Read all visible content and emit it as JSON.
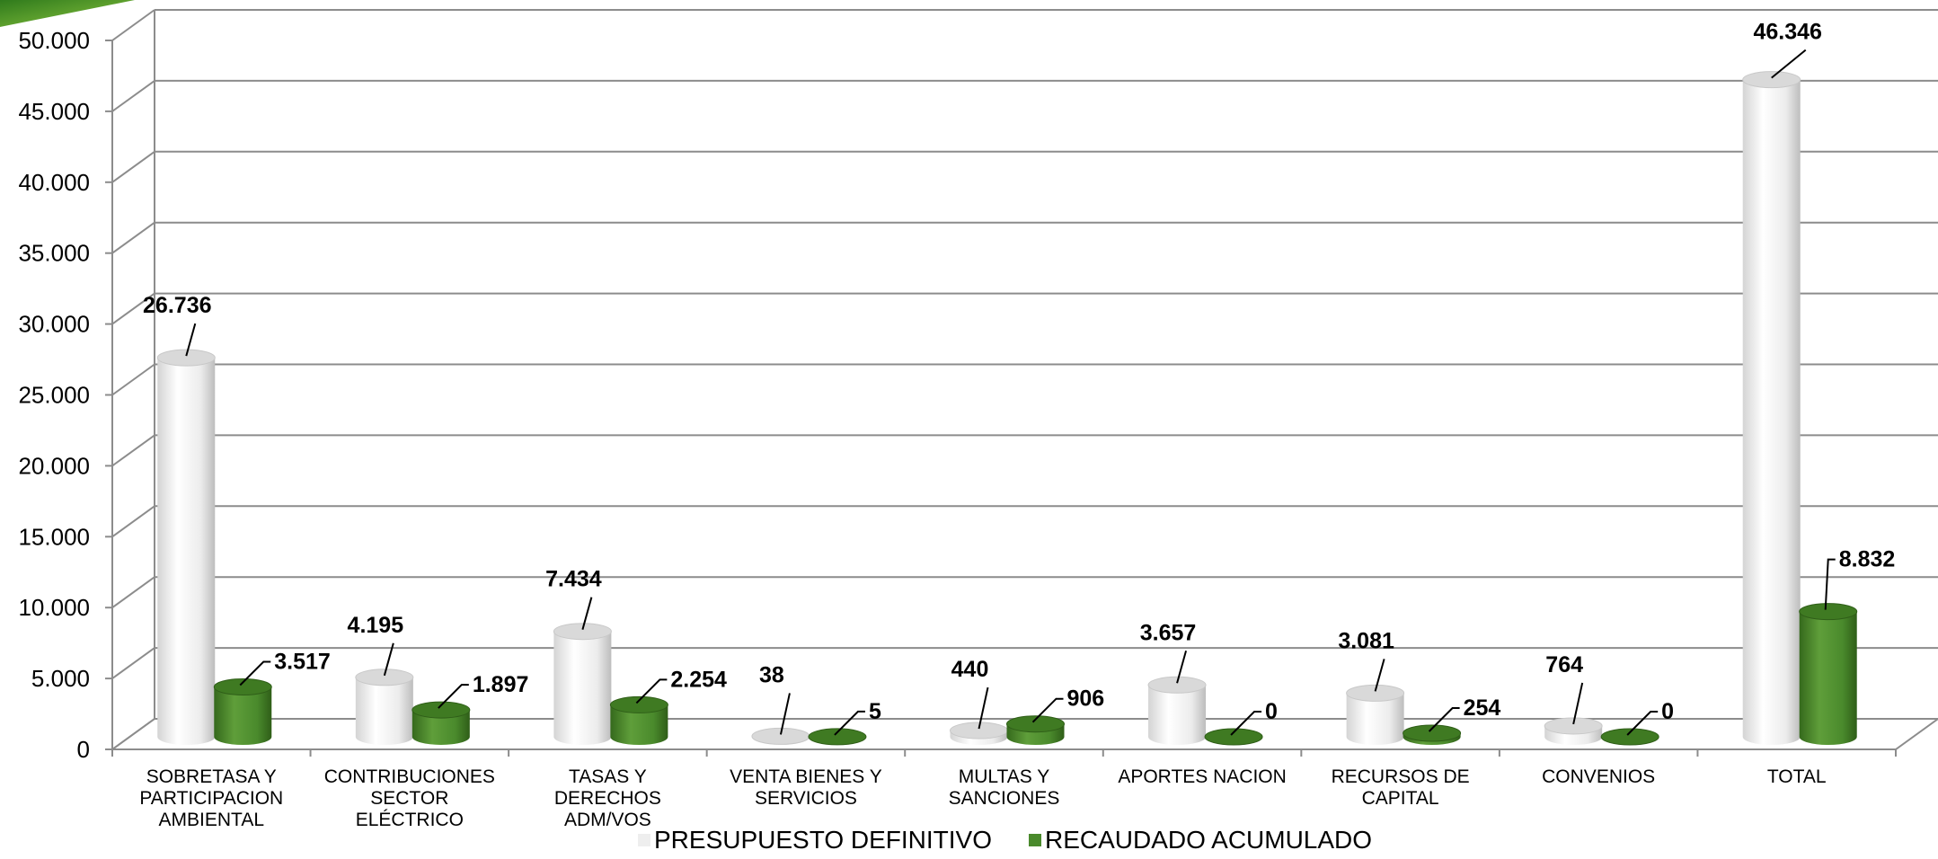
{
  "chart_data": {
    "type": "bar",
    "style": "3d-cylinder",
    "categories": [
      "SOBRETASA Y PARTICIPACION AMBIENTAL",
      "CONTRIBUCIONES SECTOR ELÉCTRICO",
      "TASAS Y DERECHOS ADM/VOS",
      "VENTA BIENES Y SERVICIOS",
      "MULTAS Y SANCIONES",
      "APORTES NACION",
      "RECURSOS DE CAPITAL",
      "CONVENIOS",
      "TOTAL"
    ],
    "category_lines": [
      [
        "SOBRETASA Y",
        "PARTICIPACION",
        "AMBIENTAL"
      ],
      [
        "CONTRIBUCIONES",
        "SECTOR",
        "ELÉCTRICO"
      ],
      [
        "TASAS Y",
        "DERECHOS",
        "ADM/VOS"
      ],
      [
        "VENTA BIENES Y",
        "SERVICIOS"
      ],
      [
        "MULTAS Y",
        "SANCIONES"
      ],
      [
        "APORTES NACION"
      ],
      [
        "RECURSOS DE",
        "CAPITAL"
      ],
      [
        "CONVENIOS"
      ],
      [
        "TOTAL"
      ]
    ],
    "series": [
      {
        "name": "PRESUPUESTO DEFINITIVO",
        "color": "#ececec",
        "values": [
          26736,
          4195,
          7434,
          38,
          440,
          3657,
          3081,
          764,
          46346
        ],
        "labels": [
          "26.736",
          "4.195",
          "7.434",
          "38",
          "440",
          "3.657",
          "3.081",
          "764",
          "46.346"
        ]
      },
      {
        "name": "RECAUDADO ACUMULADO",
        "color": "#4a8a2c",
        "values": [
          3517,
          1897,
          2254,
          5,
          906,
          0,
          254,
          0,
          8832
        ],
        "labels": [
          "3.517",
          "1.897",
          "2.254",
          "5",
          "906",
          "0",
          "254",
          "0",
          "8.832"
        ]
      }
    ],
    "ylim": [
      0,
      50000
    ],
    "yticks": [
      0,
      5000,
      10000,
      15000,
      20000,
      25000,
      30000,
      35000,
      40000,
      45000,
      50000
    ],
    "ytick_labels": [
      "0",
      "5.000",
      "10.000",
      "15.000",
      "20.000",
      "25.000",
      "30.000",
      "35.000",
      "40.000",
      "45.000",
      "50.000"
    ],
    "grid": true,
    "legend_position": "bottom"
  }
}
